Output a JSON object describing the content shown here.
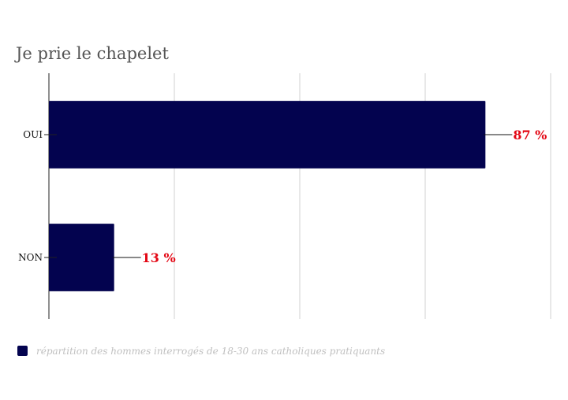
{
  "chart_data": {
    "type": "bar",
    "orientation": "horizontal",
    "title": "Je prie le chapelet",
    "categories": [
      "OUI",
      "NON"
    ],
    "series": [
      {
        "name": "répartition des hommes interrogés de 18-30 ans catholiques pratiquants",
        "values": [
          87,
          13
        ]
      }
    ],
    "data_labels": [
      "87 %",
      "13 %"
    ],
    "xlim": [
      0,
      100
    ],
    "grid": true,
    "legend": "bottom-left",
    "colors": {
      "bar": "#03034f",
      "label": "#e30613",
      "grid": "#d0d0d0",
      "title": "#555555",
      "legend_text": "#c0c0c0"
    }
  }
}
